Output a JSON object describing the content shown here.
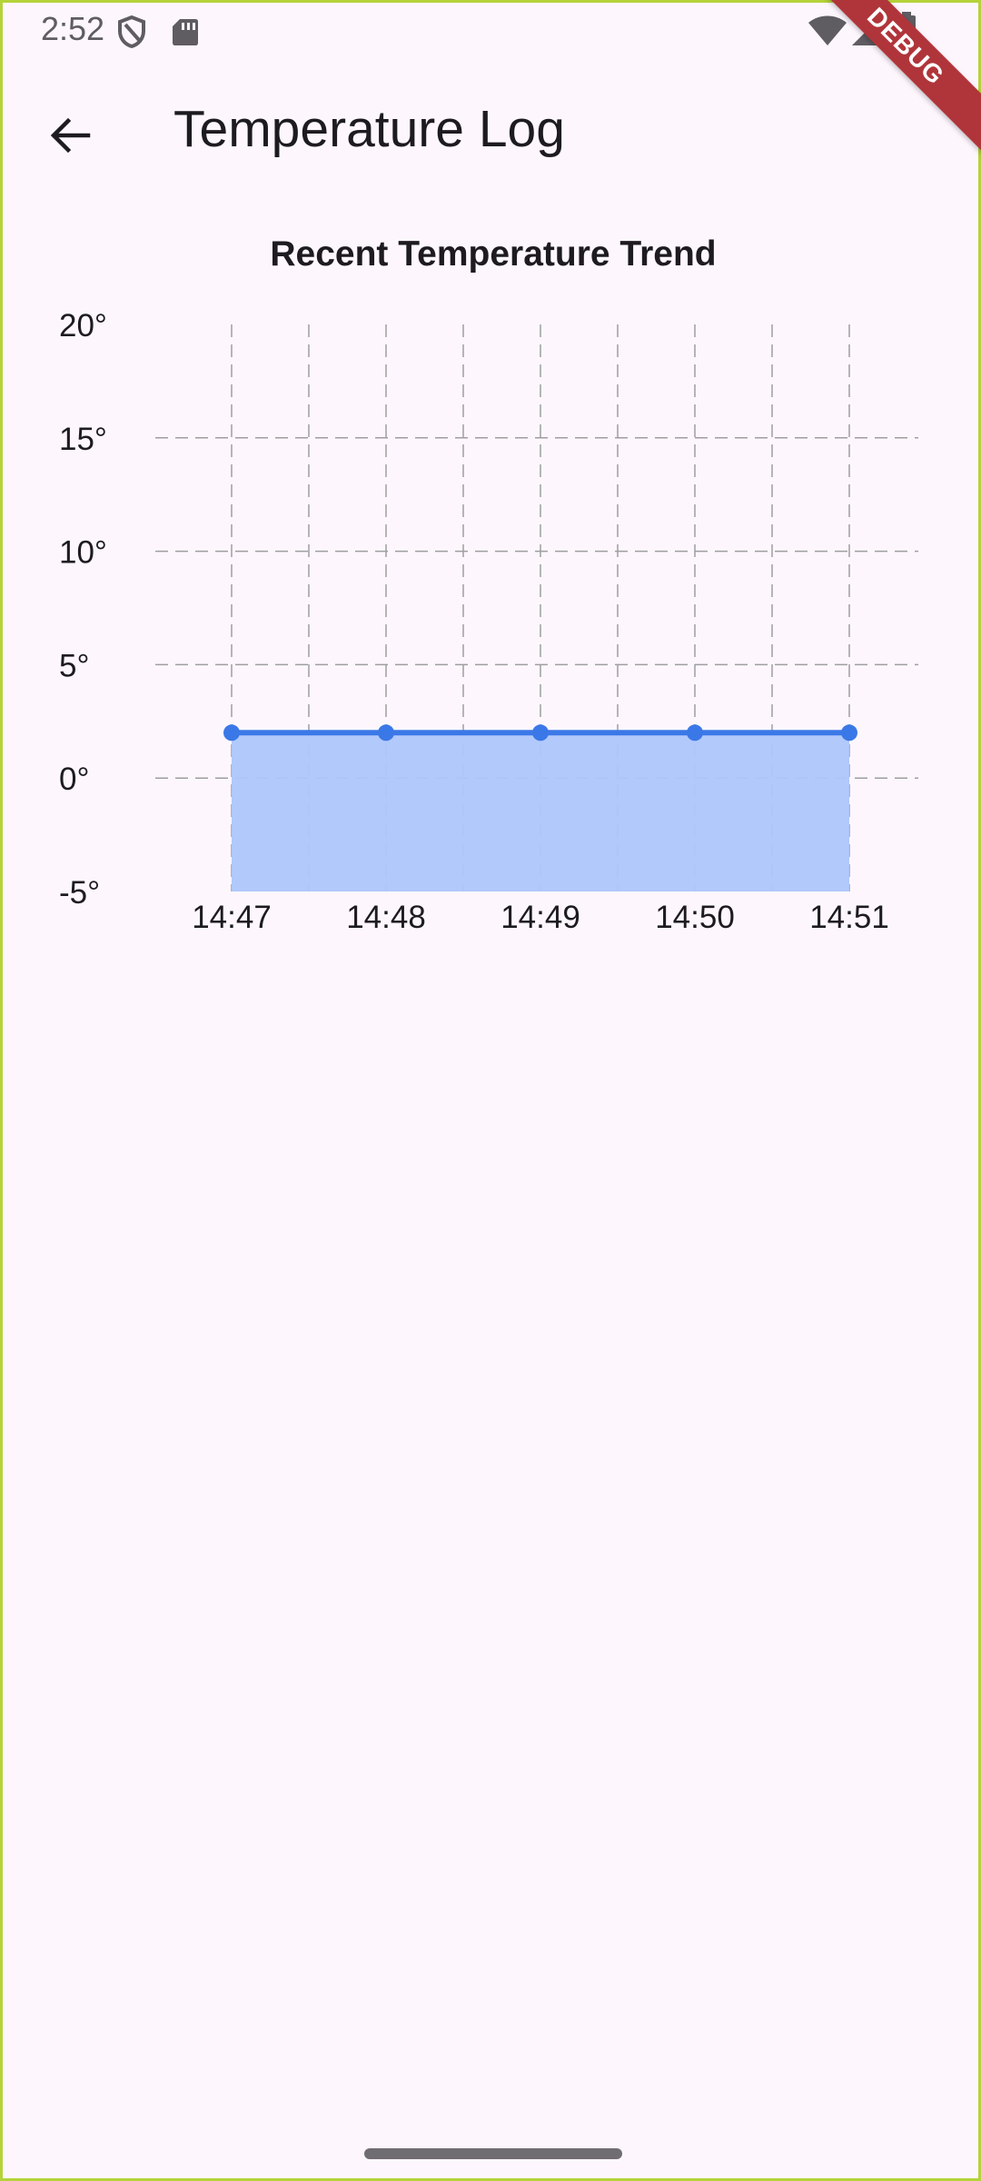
{
  "status_bar": {
    "time": "2:52",
    "icons": [
      "shield-icon",
      "sd-card-icon",
      "wifi-icon",
      "signal-icon",
      "battery-icon"
    ]
  },
  "app_bar": {
    "back_icon": "arrow-back-icon",
    "title": "Temperature Log"
  },
  "debug_banner": {
    "label": "DEBUG"
  },
  "colors": {
    "background": "#fdf7fd",
    "line": "#3b78e7",
    "fill": "#adc6fb",
    "grid": "#9e9e9e",
    "text": "#1d1b20"
  },
  "chart_data": {
    "type": "area",
    "title": "Recent Temperature Trend",
    "x": [
      "14:47",
      "14:48",
      "14:49",
      "14:50",
      "14:51"
    ],
    "series": [
      {
        "values": [
          2,
          2,
          2,
          2,
          2
        ]
      }
    ],
    "ylim": [
      -5,
      20
    ],
    "y_ticks": [
      -5,
      0,
      5,
      10,
      15,
      20
    ],
    "y_tick_suffix": "°",
    "grid": true
  }
}
